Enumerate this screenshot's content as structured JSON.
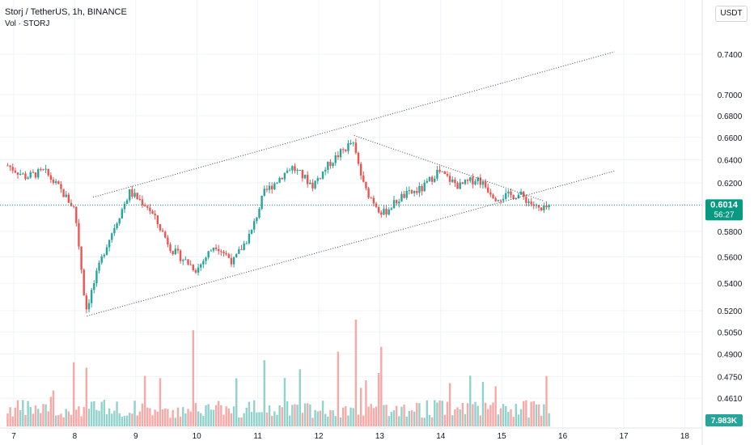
{
  "header": {
    "symbol_line": "Storj / TetherUS, 1h, BINANCE",
    "indicator_line": "Vol · STORJ",
    "currency_button": "USDT"
  },
  "colors": {
    "up": "#26a69a",
    "down": "#ef5350",
    "vol_up": "#92d2cc",
    "vol_down": "#f7a9a7",
    "price_label_bg": "#089981",
    "vol_label_bg": "#26a69a",
    "grid": "#f0f3fa",
    "trendline": "#434651"
  },
  "chart_data": {
    "type": "candlestick",
    "symbol": "Storj / TetherUS",
    "interval": "1h",
    "exchange": "BINANCE",
    "price_axis": {
      "ticks": [
        "0.7400",
        "0.7000",
        "0.6800",
        "0.6600",
        "0.6400",
        "0.6200",
        "0.5800",
        "0.5600",
        "0.5400",
        "0.5200",
        "0.5050",
        "0.4900",
        "0.4750",
        "0.4610"
      ],
      "scale": "log"
    },
    "time_axis": {
      "ticks": [
        "7",
        "8",
        "9",
        "10",
        "11",
        "12",
        "13",
        "14",
        "15",
        "16",
        "17",
        "18"
      ]
    },
    "last_price": "0.6014",
    "countdown": "56:27",
    "volume_label": "7.983K",
    "anchors": [
      {
        "day": 6.9,
        "price": 0.635
      },
      {
        "day": 7.2,
        "price": 0.625
      },
      {
        "day": 7.5,
        "price": 0.63
      },
      {
        "day": 7.75,
        "price": 0.615
      },
      {
        "day": 8.0,
        "price": 0.598
      },
      {
        "day": 8.18,
        "price": 0.52
      },
      {
        "day": 8.5,
        "price": 0.567
      },
      {
        "day": 8.9,
        "price": 0.612
      },
      {
        "day": 9.2,
        "price": 0.6
      },
      {
        "day": 9.6,
        "price": 0.565
      },
      {
        "day": 10.0,
        "price": 0.55
      },
      {
        "day": 10.3,
        "price": 0.57
      },
      {
        "day": 10.6,
        "price": 0.556
      },
      {
        "day": 10.9,
        "price": 0.58
      },
      {
        "day": 11.1,
        "price": 0.611
      },
      {
        "day": 11.55,
        "price": 0.634
      },
      {
        "day": 11.9,
        "price": 0.618
      },
      {
        "day": 12.2,
        "price": 0.638
      },
      {
        "day": 12.55,
        "price": 0.656
      },
      {
        "day": 12.75,
        "price": 0.615
      },
      {
        "day": 13.05,
        "price": 0.594
      },
      {
        "day": 13.35,
        "price": 0.608
      },
      {
        "day": 13.7,
        "price": 0.615
      },
      {
        "day": 13.95,
        "price": 0.63
      },
      {
        "day": 14.3,
        "price": 0.617
      },
      {
        "day": 14.6,
        "price": 0.624
      },
      {
        "day": 14.9,
        "price": 0.608
      },
      {
        "day": 15.3,
        "price": 0.61
      },
      {
        "day": 15.65,
        "price": 0.596
      },
      {
        "day": 15.8,
        "price": 0.6014
      }
    ],
    "volume_spikes": [
      {
        "day": 8.0,
        "value": 0.6
      },
      {
        "day": 8.18,
        "value": 0.55
      },
      {
        "day": 9.95,
        "value": 0.9
      },
      {
        "day": 10.65,
        "value": 0.45
      },
      {
        "day": 11.1,
        "value": 0.62
      },
      {
        "day": 12.3,
        "value": 0.7
      },
      {
        "day": 12.6,
        "value": 1.0
      },
      {
        "day": 13.0,
        "value": 0.5
      }
    ],
    "trendlines": [
      {
        "name": "channel-upper",
        "from": {
          "day": 8.3,
          "price": 0.6078
        },
        "to": {
          "day": 16.85,
          "price": 0.7425
        }
      },
      {
        "name": "channel-lower",
        "from": {
          "day": 8.2,
          "price": 0.5162
        },
        "to": {
          "day": 16.85,
          "price": 0.6302
        }
      },
      {
        "name": "descending-resistance",
        "from": {
          "day": 12.58,
          "price": 0.6618
        },
        "to": {
          "day": 15.7,
          "price": 0.6045
        }
      }
    ]
  }
}
